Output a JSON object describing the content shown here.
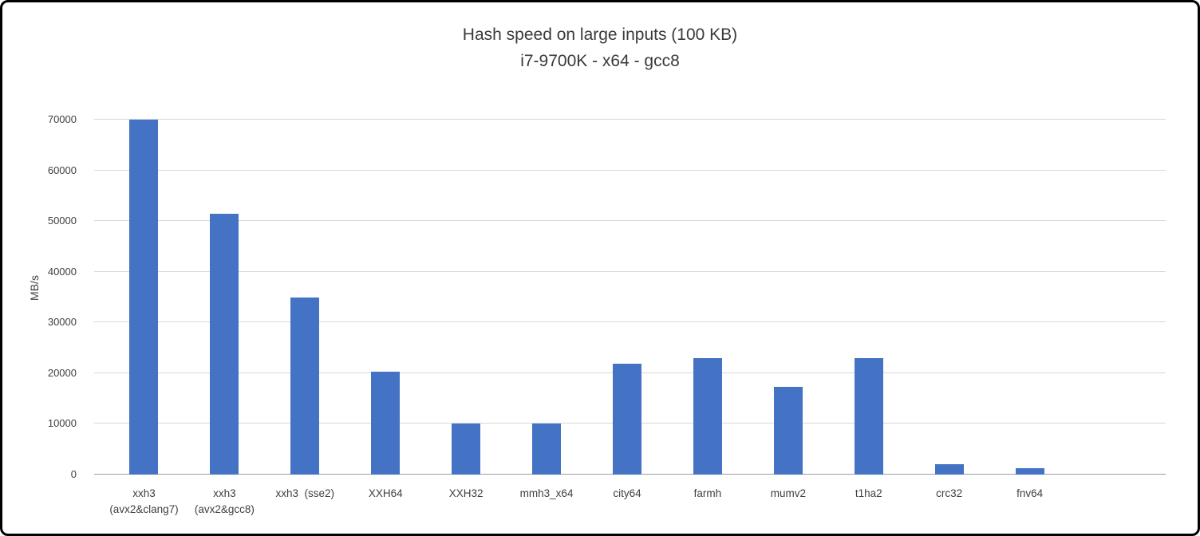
{
  "chart_data": {
    "type": "bar",
    "title": "Hash speed on large inputs (100 KB)",
    "subtitle": "i7-9700K - x64 - gcc8",
    "ylabel": "MB/s",
    "xlabel": "",
    "ylim": [
      0,
      70000
    ],
    "yticks": [
      0,
      10000,
      20000,
      30000,
      40000,
      50000,
      60000,
      70000
    ],
    "grid": true,
    "legend": "none",
    "bar_color": "#4472C4",
    "categories": [
      "xxh3 (avx2&clang7)",
      "xxh3 (avx2&gcc8)",
      "xxh3 (sse2)",
      "XXH64",
      "XXH32",
      "mmh3_x64",
      "city64",
      "farmh",
      "mumv2",
      "t1ha2",
      "crc32",
      "fnv64"
    ],
    "category_label_lines": [
      [
        "xxh3",
        "(avx2&clang7)"
      ],
      [
        "xxh3",
        "(avx2&gcc8)"
      ],
      [
        "xxh3  (sse2)"
      ],
      [
        "XXH64"
      ],
      [
        "XXH32"
      ],
      [
        "mmh3_x64"
      ],
      [
        "city64"
      ],
      [
        "farmh"
      ],
      [
        "mumv2"
      ],
      [
        "t1ha2"
      ],
      [
        "crc32"
      ],
      [
        "fnv64"
      ]
    ],
    "values": [
      70000,
      51500,
      35000,
      20300,
      10100,
      10000,
      21900,
      23000,
      17300,
      23000,
      2000,
      1200
    ]
  }
}
